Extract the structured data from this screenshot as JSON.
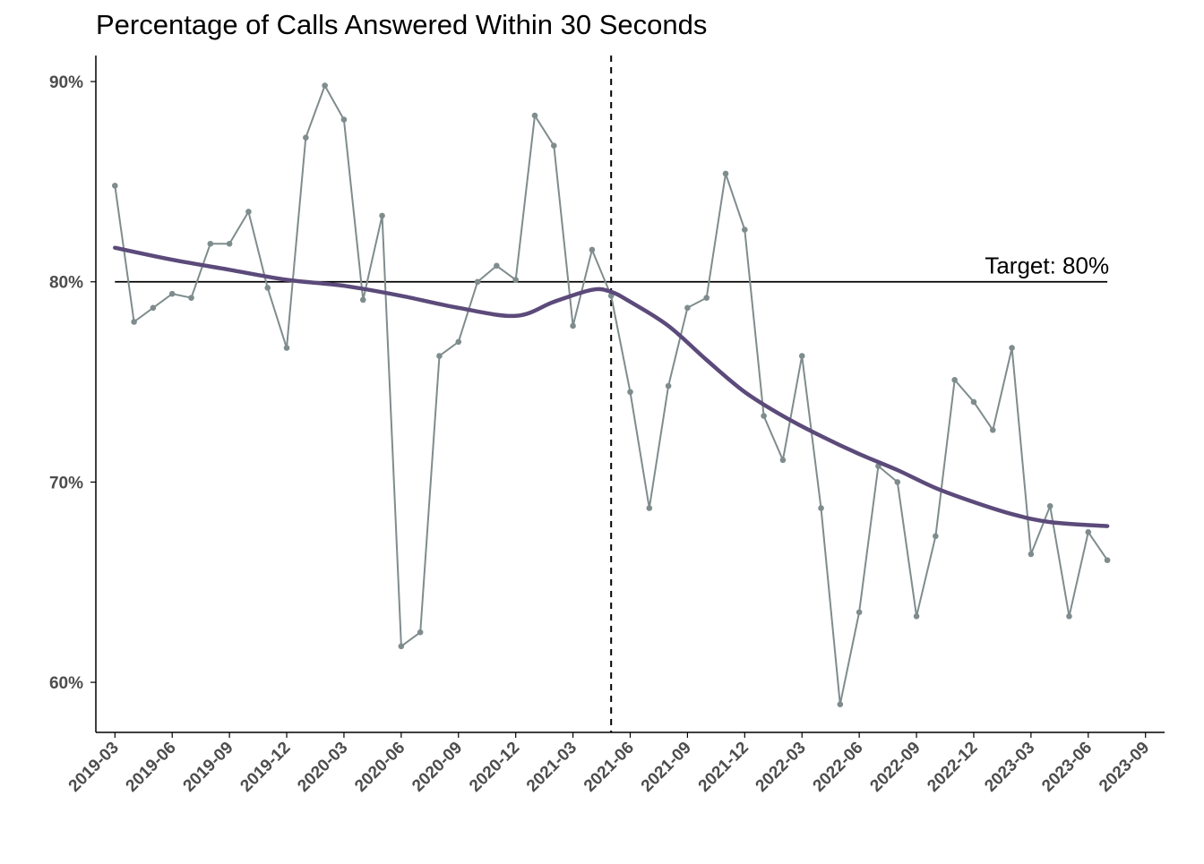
{
  "chart_data": {
    "type": "line",
    "title": "Percentage of Calls Answered Within 30 Seconds",
    "xlabel": "",
    "ylabel": "",
    "y_format": "percent",
    "ylim": [
      57.5,
      91.3
    ],
    "y_ticks": [
      60,
      70,
      80,
      90
    ],
    "y_tick_labels": [
      "60%",
      "70%",
      "80%",
      "90%"
    ],
    "x_ticks": [
      "2019-03",
      "2019-06",
      "2019-09",
      "2019-12",
      "2020-03",
      "2020-06",
      "2020-09",
      "2020-12",
      "2021-03",
      "2021-06",
      "2021-09",
      "2021-12",
      "2022-03",
      "2022-06",
      "2022-09",
      "2022-12",
      "2023-03",
      "2023-06",
      "2023-09"
    ],
    "xlim": [
      "2019-02",
      "2023-10"
    ],
    "grid": false,
    "legend": "none",
    "colors": {
      "series": "#7f8c8d",
      "trend": "#5b4a7a",
      "target": "#000000",
      "divider": "#000000",
      "axis": "#000000",
      "tick_text": "#4d4d4d"
    },
    "series": [
      {
        "x": [
          "2019-03",
          "2019-04",
          "2019-05",
          "2019-06",
          "2019-07",
          "2019-08",
          "2019-09",
          "2019-10",
          "2019-11",
          "2019-12",
          "2020-01",
          "2020-02",
          "2020-03",
          "2020-04",
          "2020-05",
          "2020-06",
          "2020-07",
          "2020-08",
          "2020-09",
          "2020-10",
          "2020-11",
          "2020-12",
          "2021-01",
          "2021-02",
          "2021-03",
          "2021-04",
          "2021-05",
          "2021-06",
          "2021-07",
          "2021-08",
          "2021-09",
          "2021-10",
          "2021-11",
          "2021-12",
          "2022-01",
          "2022-02",
          "2022-03",
          "2022-04",
          "2022-05",
          "2022-06",
          "2022-07",
          "2022-08",
          "2022-09",
          "2022-10",
          "2022-11",
          "2022-12",
          "2023-01",
          "2023-02",
          "2023-03",
          "2023-04",
          "2023-05",
          "2023-06",
          "2023-07"
        ],
        "values": [
          84.8,
          78.0,
          78.7,
          79.4,
          79.2,
          81.9,
          81.9,
          83.5,
          79.7,
          76.7,
          87.2,
          89.8,
          88.1,
          79.1,
          83.3,
          61.8,
          62.5,
          76.3,
          77.0,
          80.0,
          80.8,
          80.1,
          88.3,
          86.8,
          77.8,
          81.6,
          79.3,
          74.5,
          68.7,
          74.8,
          78.7,
          79.2,
          85.4,
          82.6,
          73.3,
          71.1,
          76.3,
          68.7,
          58.9,
          63.5,
          70.8,
          70.0,
          63.3,
          67.3,
          75.1,
          74.0,
          72.6,
          76.7,
          66.4,
          68.8,
          63.3,
          67.5,
          66.1
        ]
      },
      {
        "x": [
          "2019-03",
          "2019-06",
          "2019-09",
          "2019-12",
          "2020-03",
          "2020-06",
          "2020-09",
          "2020-12",
          "2021-02",
          "2021-04",
          "2021-05",
          "2021-06",
          "2021-08",
          "2021-10",
          "2021-12",
          "2022-02",
          "2022-04",
          "2022-06",
          "2022-08",
          "2022-10",
          "2022-12",
          "2023-02",
          "2023-04",
          "2023-07"
        ],
        "values": [
          81.7,
          81.1,
          80.6,
          80.1,
          79.8,
          79.3,
          78.7,
          78.3,
          79.0,
          79.6,
          79.5,
          79.0,
          77.8,
          76.1,
          74.5,
          73.3,
          72.3,
          71.4,
          70.6,
          69.7,
          69.0,
          68.4,
          68.0,
          67.8
        ]
      }
    ],
    "target_line": {
      "value": 80,
      "x_from": "2019-03",
      "x_to": "2023-07"
    },
    "target_label": "Target: 80%",
    "divider_x": "2021-05"
  }
}
